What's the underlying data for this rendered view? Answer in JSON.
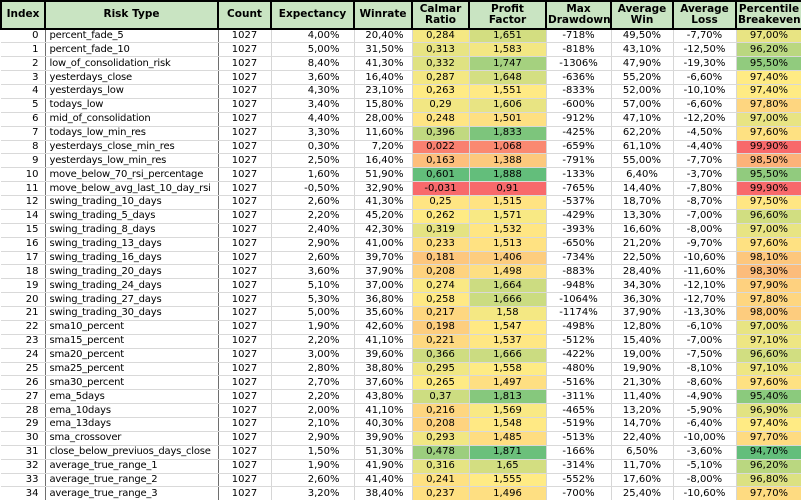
{
  "table": {
    "header_bg": "#C9E4C2",
    "scale_colors": {
      "low": "#F8696B",
      "mid": "#FFEB84",
      "high": "#63BE7B"
    },
    "columns": [
      {
        "key": "index",
        "label": "Index",
        "width": 44,
        "scale": null
      },
      {
        "key": "risk_type",
        "label": "Risk Type",
        "width": 173,
        "scale": null
      },
      {
        "key": "count",
        "label": "Count",
        "width": 53,
        "scale": null
      },
      {
        "key": "expectancy",
        "label": "Expectancy",
        "width": 83,
        "scale": null
      },
      {
        "key": "winrate",
        "label": "Winrate",
        "width": 58,
        "scale": null
      },
      {
        "key": "calmar_ratio",
        "label": "Calmar Ratio",
        "width": 57,
        "scale": "asc"
      },
      {
        "key": "profit_factor",
        "label": "Profit Factor",
        "width": 77,
        "scale": "asc"
      },
      {
        "key": "max_drawdown",
        "label": "Max Drawdown",
        "width": 65,
        "scale": null
      },
      {
        "key": "average_win",
        "label": "Average Win",
        "width": 62,
        "scale": null
      },
      {
        "key": "average_loss",
        "label": "Average Loss",
        "width": 63,
        "scale": null
      },
      {
        "key": "percentile_breakeven",
        "label": "Percentile Breakeven",
        "width": 66,
        "scale": "desc"
      }
    ],
    "rows": [
      [
        "0",
        "percent_fade_5",
        "1027",
        "4,00%",
        "20,40%",
        "0,284",
        "1,651",
        "-718%",
        "49,50%",
        "-7,70%",
        "97,00%"
      ],
      [
        "1",
        "percent_fade_10",
        "1027",
        "5,00%",
        "31,50%",
        "0,313",
        "1,583",
        "-818%",
        "43,10%",
        "-12,50%",
        "96,20%"
      ],
      [
        "2",
        "low_of_consolidation_risk",
        "1027",
        "8,40%",
        "41,30%",
        "0,332",
        "1,747",
        "-1306%",
        "47,90%",
        "-19,30%",
        "95,50%"
      ],
      [
        "3",
        "yesterdays_close",
        "1027",
        "3,60%",
        "16,40%",
        "0,287",
        "1,648",
        "-636%",
        "55,20%",
        "-6,60%",
        "97,40%"
      ],
      [
        "4",
        "yesterdays_low",
        "1027",
        "4,30%",
        "23,10%",
        "0,263",
        "1,551",
        "-833%",
        "52,00%",
        "-10,10%",
        "97,40%"
      ],
      [
        "5",
        "todays_low",
        "1027",
        "3,40%",
        "15,80%",
        "0,29",
        "1,606",
        "-600%",
        "57,00%",
        "-6,60%",
        "97,80%"
      ],
      [
        "6",
        "mid_of_consolidation",
        "1027",
        "4,40%",
        "28,00%",
        "0,248",
        "1,501",
        "-912%",
        "47,10%",
        "-12,20%",
        "97,00%"
      ],
      [
        "7",
        "todays_low_min_res",
        "1027",
        "3,30%",
        "11,60%",
        "0,396",
        "1,833",
        "-425%",
        "62,20%",
        "-4,50%",
        "97,60%"
      ],
      [
        "8",
        "yesterdays_close_min_res",
        "1027",
        "0,30%",
        "7,20%",
        "0,022",
        "1,068",
        "-659%",
        "61,10%",
        "-4,40%",
        "99,90%"
      ],
      [
        "9",
        "yesterdays_low_min_res",
        "1027",
        "2,50%",
        "16,40%",
        "0,163",
        "1,388",
        "-791%",
        "55,00%",
        "-7,70%",
        "98,50%"
      ],
      [
        "10",
        "move_below_70_rsi_percentage",
        "1027",
        "1,60%",
        "51,90%",
        "0,601",
        "1,888",
        "-133%",
        "6,40%",
        "-3,70%",
        "95,50%"
      ],
      [
        "11",
        "move_below_avg_last_10_day_rsi",
        "1027",
        "-0,50%",
        "32,90%",
        "-0,031",
        "0,91",
        "-765%",
        "14,40%",
        "-7,80%",
        "99,90%"
      ],
      [
        "12",
        "swing_trading_10_days",
        "1027",
        "2,60%",
        "41,30%",
        "0,25",
        "1,515",
        "-537%",
        "18,70%",
        "-8,70%",
        "97,50%"
      ],
      [
        "14",
        "swing_trading_5_days",
        "1027",
        "2,20%",
        "45,20%",
        "0,262",
        "1,571",
        "-429%",
        "13,30%",
        "-7,00%",
        "96,60%"
      ],
      [
        "15",
        "swing_trading_8_days",
        "1027",
        "2,40%",
        "42,30%",
        "0,319",
        "1,532",
        "-393%",
        "16,60%",
        "-8,00%",
        "97,00%"
      ],
      [
        "16",
        "swing_trading_13_days",
        "1027",
        "2,90%",
        "41,00%",
        "0,233",
        "1,513",
        "-650%",
        "21,20%",
        "-9,70%",
        "97,60%"
      ],
      [
        "17",
        "swing_trading_16_days",
        "1027",
        "2,60%",
        "39,70%",
        "0,181",
        "1,406",
        "-734%",
        "22,50%",
        "-10,60%",
        "98,10%"
      ],
      [
        "18",
        "swing_trading_20_days",
        "1027",
        "3,60%",
        "37,90%",
        "0,208",
        "1,498",
        "-883%",
        "28,40%",
        "-11,60%",
        "98,30%"
      ],
      [
        "19",
        "swing_trading_24_days",
        "1027",
        "5,10%",
        "37,00%",
        "0,274",
        "1,664",
        "-948%",
        "34,30%",
        "-12,10%",
        "97,90%"
      ],
      [
        "20",
        "swing_trading_27_days",
        "1027",
        "5,30%",
        "36,80%",
        "0,258",
        "1,666",
        "-1064%",
        "36,30%",
        "-12,70%",
        "97,80%"
      ],
      [
        "21",
        "swing_trading_30_days",
        "1027",
        "5,00%",
        "35,60%",
        "0,217",
        "1,58",
        "-1174%",
        "37,90%",
        "-13,30%",
        "98,00%"
      ],
      [
        "22",
        "sma10_percent",
        "1027",
        "1,90%",
        "42,60%",
        "0,198",
        "1,547",
        "-498%",
        "12,80%",
        "-6,10%",
        "97,00%"
      ],
      [
        "23",
        "sma15_percent",
        "1027",
        "2,20%",
        "41,10%",
        "0,221",
        "1,537",
        "-512%",
        "15,40%",
        "-7,00%",
        "97,10%"
      ],
      [
        "24",
        "sma20_percent",
        "1027",
        "3,00%",
        "39,60%",
        "0,366",
        "1,666",
        "-422%",
        "19,00%",
        "-7,50%",
        "96,60%"
      ],
      [
        "25",
        "sma25_percent",
        "1027",
        "2,80%",
        "38,80%",
        "0,295",
        "1,558",
        "-480%",
        "19,90%",
        "-8,10%",
        "97,10%"
      ],
      [
        "26",
        "sma30_percent",
        "1027",
        "2,70%",
        "37,60%",
        "0,265",
        "1,497",
        "-516%",
        "21,30%",
        "-8,60%",
        "97,60%"
      ],
      [
        "27",
        "ema_5days",
        "1027",
        "2,20%",
        "43,80%",
        "0,37",
        "1,813",
        "-311%",
        "11,40%",
        "-4,90%",
        "95,40%"
      ],
      [
        "28",
        "ema_10days",
        "1027",
        "2,00%",
        "41,10%",
        "0,216",
        "1,569",
        "-465%",
        "13,20%",
        "-5,90%",
        "96,90%"
      ],
      [
        "29",
        "ema_13days",
        "1027",
        "2,10%",
        "40,30%",
        "0,208",
        "1,548",
        "-519%",
        "14,70%",
        "-6,40%",
        "97,40%"
      ],
      [
        "30",
        "sma_crossover",
        "1027",
        "2,90%",
        "39,90%",
        "0,293",
        "1,485",
        "-513%",
        "22,40%",
        "-10,00%",
        "97,70%"
      ],
      [
        "31",
        "close_below_previuos_days_close",
        "1027",
        "1,50%",
        "51,30%",
        "0,478",
        "1,871",
        "-166%",
        "6,50%",
        "-3,60%",
        "94,70%"
      ],
      [
        "32",
        "average_true_range_1",
        "1027",
        "1,90%",
        "41,90%",
        "0,316",
        "1,65",
        "-314%",
        "11,70%",
        "-5,10%",
        "96,20%"
      ],
      [
        "33",
        "average_true_range_2",
        "1027",
        "2,60%",
        "41,40%",
        "0,241",
        "1,555",
        "-552%",
        "17,60%",
        "-8,00%",
        "96,80%"
      ],
      [
        "34",
        "average_true_range_3",
        "1027",
        "3,20%",
        "38,40%",
        "0,237",
        "1,496",
        "-700%",
        "25,40%",
        "-10,60%",
        "97,70%"
      ]
    ]
  }
}
